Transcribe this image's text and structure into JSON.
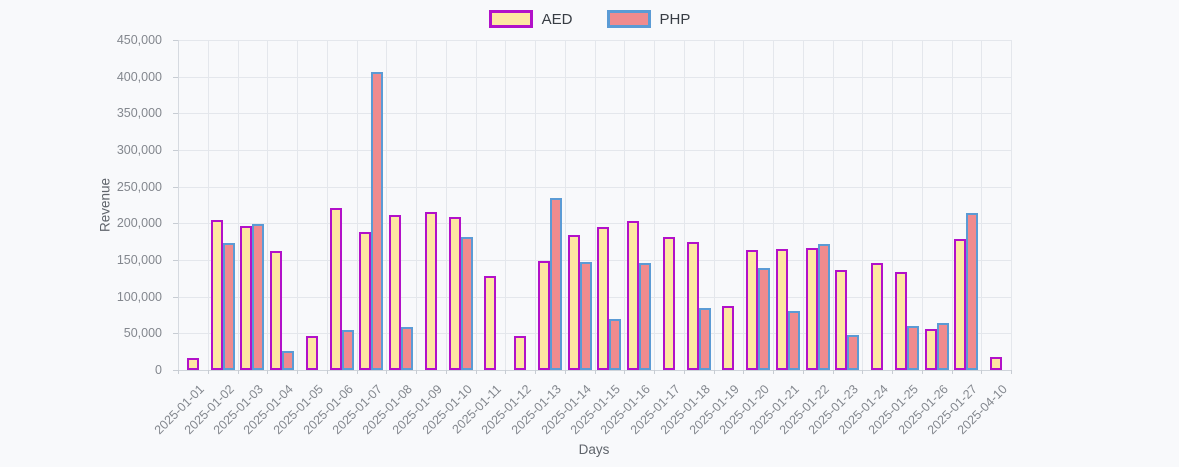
{
  "legend": {
    "items": [
      {
        "label": "AED"
      },
      {
        "label": "PHP"
      }
    ]
  },
  "axis": {
    "x_title": "Days",
    "y_title": "Revenue"
  },
  "chart_data": {
    "type": "bar",
    "title": "",
    "xlabel": "Days",
    "ylabel": "Revenue",
    "ylim": [
      0,
      450000
    ],
    "ytick_step": 50000,
    "grid": true,
    "legend_position": "top",
    "categories": [
      "2025-01-01",
      "2025-01-02",
      "2025-01-03",
      "2025-01-04",
      "2025-01-05",
      "2025-01-06",
      "2025-01-07",
      "2025-01-08",
      "2025-01-09",
      "2025-01-10",
      "2025-01-11",
      "2025-01-12",
      "2025-01-13",
      "2025-01-14",
      "2025-01-15",
      "2025-01-16",
      "2025-01-17",
      "2025-01-18",
      "2025-01-19",
      "2025-01-20",
      "2025-01-21",
      "2025-01-22",
      "2025-01-23",
      "2025-01-24",
      "2025-01-25",
      "2025-01-26",
      "2025-01-27",
      "2025-04-10"
    ],
    "series": [
      {
        "name": "AED",
        "fill": "#fde7a2",
        "border": "#b211c9",
        "values": [
          17000,
          204000,
          196000,
          162000,
          46000,
          221000,
          188000,
          211000,
          216000,
          209000,
          128000,
          47000,
          148000,
          184000,
          195000,
          203000,
          181000,
          174000,
          87000,
          163000,
          165000,
          167000,
          136000,
          146000,
          133000,
          56000,
          179000,
          18000
        ]
      },
      {
        "name": "PHP",
        "fill": "#f08b8e",
        "border": "#5b9bd5",
        "values": [
          null,
          173000,
          199000,
          26000,
          null,
          54000,
          407000,
          58000,
          null,
          182000,
          null,
          null,
          235000,
          147000,
          69000,
          146000,
          null,
          85000,
          null,
          139000,
          80000,
          172000,
          48000,
          null,
          60000,
          64000,
          214000,
          null
        ]
      }
    ]
  },
  "colors": {
    "background": "#f8f9fb",
    "gridline": "#e4e7ec",
    "tick_text": "#83878e",
    "axis_title_text": "#5f646b"
  }
}
